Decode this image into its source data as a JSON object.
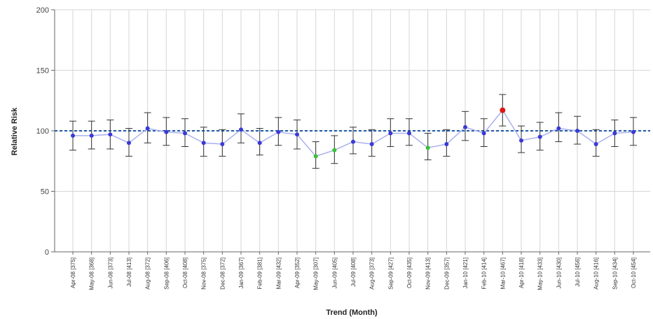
{
  "chart_data": {
    "type": "line",
    "xlabel": "Trend (Month)",
    "ylabel": "Relative Risk",
    "ylim": [
      0,
      200
    ],
    "yticks": [
      0,
      50,
      100,
      150,
      200
    ],
    "reference_line": 100,
    "grid": "vertical gridlines on",
    "categories": [
      "Apr-08 [375]",
      "May-08 [368]",
      "Jun-08 [373]",
      "Jul-08 [413]",
      "Aug-08 [372]",
      "Sep-08 [406]",
      "Oct-08 [408]",
      "Nov-08 [375]",
      "Dec-08 [372]",
      "Jan-09 [367]",
      "Feb-09 [381]",
      "Mar-09 [432]",
      "Apr-09 [352]",
      "May-09 [307]",
      "Jun-09 [405]",
      "Jul-09 [408]",
      "Aug-09 [373]",
      "Sep-09 [427]",
      "Oct-09 [435]",
      "Nov-09 [413]",
      "Dec-09 [357]",
      "Jan-10 [421]",
      "Feb-10 [414]",
      "Mar-10 [467]",
      "Apr-10 [418]",
      "May-10 [433]",
      "Jun-10 [430]",
      "Jul-10 [456]",
      "Aug-10 [416]",
      "Sep-10 [434]",
      "Oct-10 [454]"
    ],
    "series": [
      {
        "values": [
          96,
          96,
          97,
          90,
          102,
          99,
          98,
          90,
          89,
          101,
          90,
          99,
          97,
          79,
          84,
          91,
          89,
          98,
          98,
          86,
          89,
          103,
          98,
          117,
          92,
          95,
          102,
          100,
          89,
          98,
          99
        ],
        "lower": [
          84,
          85,
          85,
          79,
          90,
          88,
          87,
          79,
          79,
          90,
          80,
          88,
          85,
          69,
          73,
          81,
          79,
          87,
          88,
          76,
          79,
          92,
          87,
          104,
          82,
          84,
          91,
          89,
          79,
          87,
          88
        ],
        "upper": [
          108,
          108,
          109,
          102,
          115,
          111,
          110,
          103,
          101,
          114,
          102,
          111,
          109,
          91,
          96,
          103,
          101,
          110,
          110,
          98,
          101,
          116,
          110,
          130,
          104,
          107,
          115,
          112,
          101,
          109,
          111
        ],
        "point_status": [
          "normal",
          "normal",
          "normal",
          "normal",
          "normal",
          "normal",
          "normal",
          "normal",
          "normal",
          "normal",
          "normal",
          "normal",
          "normal",
          "low",
          "low",
          "normal",
          "normal",
          "normal",
          "normal",
          "low",
          "normal",
          "normal",
          "normal",
          "high",
          "normal",
          "normal",
          "normal",
          "normal",
          "normal",
          "normal",
          "normal"
        ]
      }
    ],
    "colors": {
      "line": "#aab0ee",
      "normal_point": "#3a3ad6",
      "low_point": "#35c235",
      "high_point": "#e01616",
      "reference_line": "#1e5aa8",
      "error_bar": "#333333",
      "grid": "#d6d6d6"
    }
  }
}
